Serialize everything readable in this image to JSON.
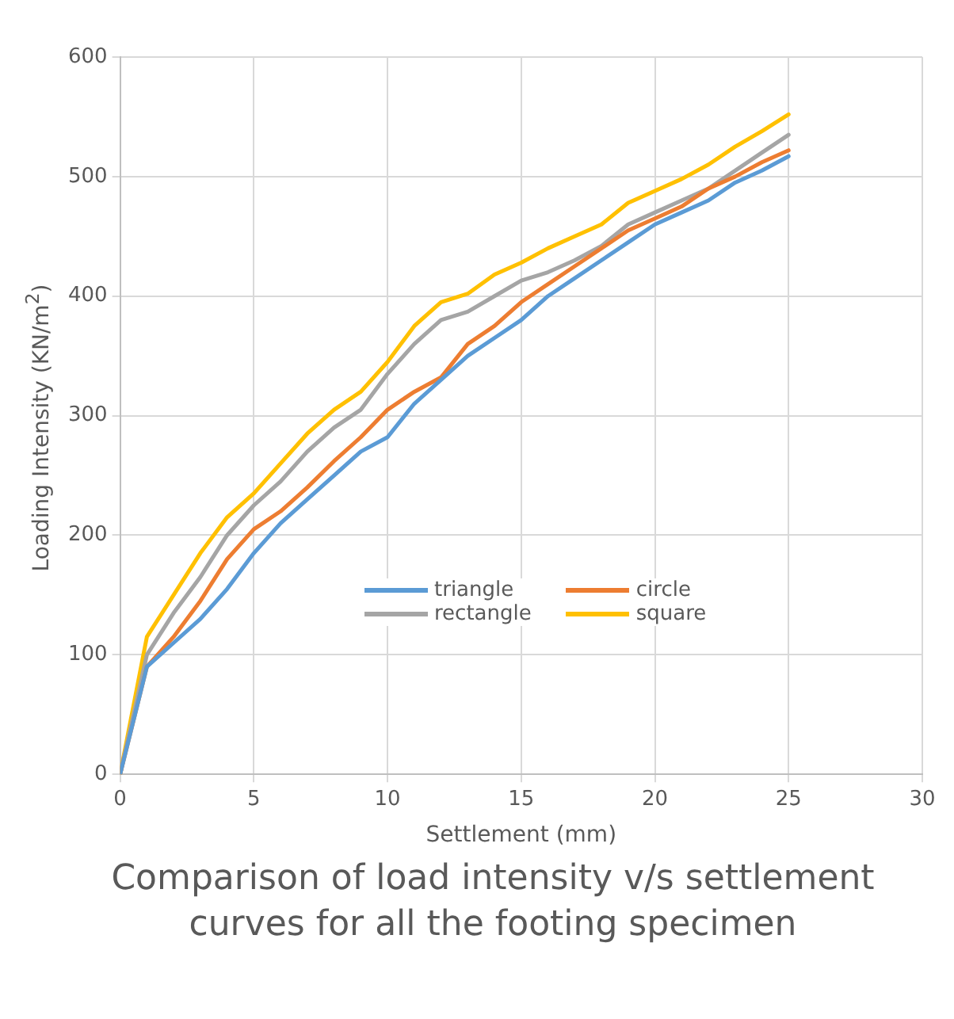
{
  "chart_data": {
    "type": "line",
    "title": "Comparison of load intensity v/s settlement curves for all the footing specimen",
    "xlabel": "Settlement (mm)",
    "ylabel": "Loading Intensity (KN/m$^{2}$)",
    "x": [
      0,
      1,
      2,
      3,
      4,
      5,
      6,
      7,
      8,
      9,
      10,
      11,
      12,
      13,
      14,
      15,
      16,
      17,
      18,
      19,
      20,
      21,
      22,
      23,
      24,
      25
    ],
    "series": [
      {
        "name": "triangle",
        "color": "#5b9bd5",
        "values": [
          0,
          90,
          110,
          130,
          155,
          185,
          210,
          230,
          250,
          270,
          282,
          310,
          330,
          350,
          365,
          380,
          400,
          415,
          430,
          445,
          460,
          470,
          480,
          495,
          505,
          517
        ]
      },
      {
        "name": "circle",
        "color": "#ed7d31",
        "values": [
          0,
          90,
          115,
          145,
          180,
          205,
          220,
          240,
          262,
          282,
          305,
          320,
          332,
          360,
          375,
          395,
          410,
          425,
          440,
          455,
          465,
          475,
          490,
          500,
          512,
          522
        ]
      },
      {
        "name": "rectangle",
        "color": "#a5a5a5",
        "values": [
          0,
          100,
          135,
          165,
          200,
          225,
          245,
          270,
          290,
          305,
          335,
          360,
          380,
          387,
          400,
          413,
          420,
          430,
          442,
          460,
          470,
          480,
          490,
          505,
          520,
          535
        ]
      },
      {
        "name": "square",
        "color": "#ffc000",
        "values": [
          0,
          115,
          150,
          185,
          215,
          235,
          260,
          285,
          305,
          320,
          345,
          375,
          395,
          402,
          418,
          428,
          440,
          450,
          460,
          478,
          488,
          498,
          510,
          525,
          538,
          552
        ]
      }
    ],
    "xlim": [
      0,
      30
    ],
    "xticks": [
      0,
      5,
      10,
      15,
      20,
      25,
      30
    ],
    "ylim": [
      0,
      600
    ],
    "yticks": [
      0,
      100,
      200,
      300,
      400,
      500,
      600
    ],
    "grid": true,
    "legend": "center",
    "marker": "none",
    "line_style": "solid"
  }
}
